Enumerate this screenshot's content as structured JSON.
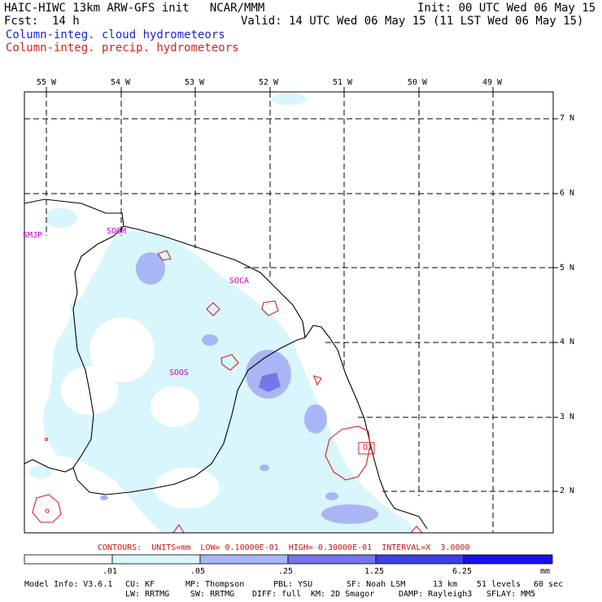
{
  "header": {
    "model_title": "HAIC-HIWC 13km ARW-GFS init   NCAR/MMM",
    "init": "Init: 00 UTC Wed 06 May 15",
    "fcst_label": "Fcst:",
    "fcst_value": "14 h",
    "valid": "Valid: 14 UTC Wed 06 May 15 (11 LST Wed 06 May 15)",
    "field_cloud": "Column-integ. cloud hydrometeors",
    "field_precip": "Column-integ. precip. hydrometeors"
  },
  "map": {
    "lon_labels": [
      "55 W",
      "54 W",
      "53 W",
      "52 W",
      "51 W",
      "50 W",
      "49 W"
    ],
    "lat_labels": [
      "7 N",
      "6 N",
      "5 N",
      "4 N",
      "3 N",
      "2 N"
    ],
    "stations": [
      "SMJP",
      "SOGM",
      "SOCA",
      "SOOS",
      "OI"
    ]
  },
  "contours_line": "CONTOURS:  UNITS=mm  LOW= 0.10000E-01  HIGH= 0.30000E-01  INTERVAL=X  3.0000",
  "colorbar": {
    "ticks": [
      ".01",
      ".05",
      ".25",
      "1.25",
      "6.25"
    ],
    "unit": "mm",
    "colors": [
      "#ffffff",
      "#d8f6fb",
      "#a9b6f5",
      "#7476ea",
      "#3f3fe6",
      "#1c10ea"
    ]
  },
  "footer": {
    "line1_a": "Model Info: V3.6.1",
    "line1_b": "CU: KF",
    "line1_c": "MP: Thompson",
    "line1_d": "PBL: YSU",
    "line1_e": "SF: Noah LSM",
    "line1_f": "13 km",
    "line1_g": "51 levels",
    "line1_h": "60 sec",
    "line2_a": "LW: RRTMG",
    "line2_b": "SW: RRTMG",
    "line2_c": "DIFF: full",
    "line2_d": "KM: 2D Smagor",
    "line2_e": "DAMP: Rayleigh3",
    "line2_f": "SFLAY: MM5"
  }
}
